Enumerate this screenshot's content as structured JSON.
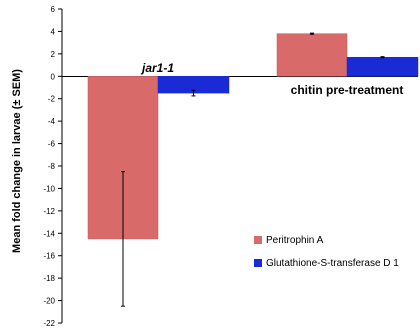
{
  "chart_data": {
    "type": "bar",
    "ylabel": "Mean fold change in larvae (± SEM)",
    "ylim": [
      -22,
      6
    ],
    "ytick_step": 2,
    "grid": false,
    "legend_position": "bottom-right",
    "series": [
      {
        "name": "Peritrophin A",
        "color": "#d96a6a"
      },
      {
        "name": "Glutathione-S-transferase D 1",
        "color": "#1a2bd6"
      }
    ],
    "groups": [
      {
        "label": "jar1-1",
        "label_italic": true,
        "values": [
          -14.5,
          -1.5
        ],
        "errors": [
          6.0,
          0.25
        ]
      },
      {
        "label": "chitin pre-treatment",
        "label_italic": false,
        "values": [
          3.8,
          1.7
        ],
        "errors": [
          0.05,
          0.05
        ]
      }
    ]
  }
}
